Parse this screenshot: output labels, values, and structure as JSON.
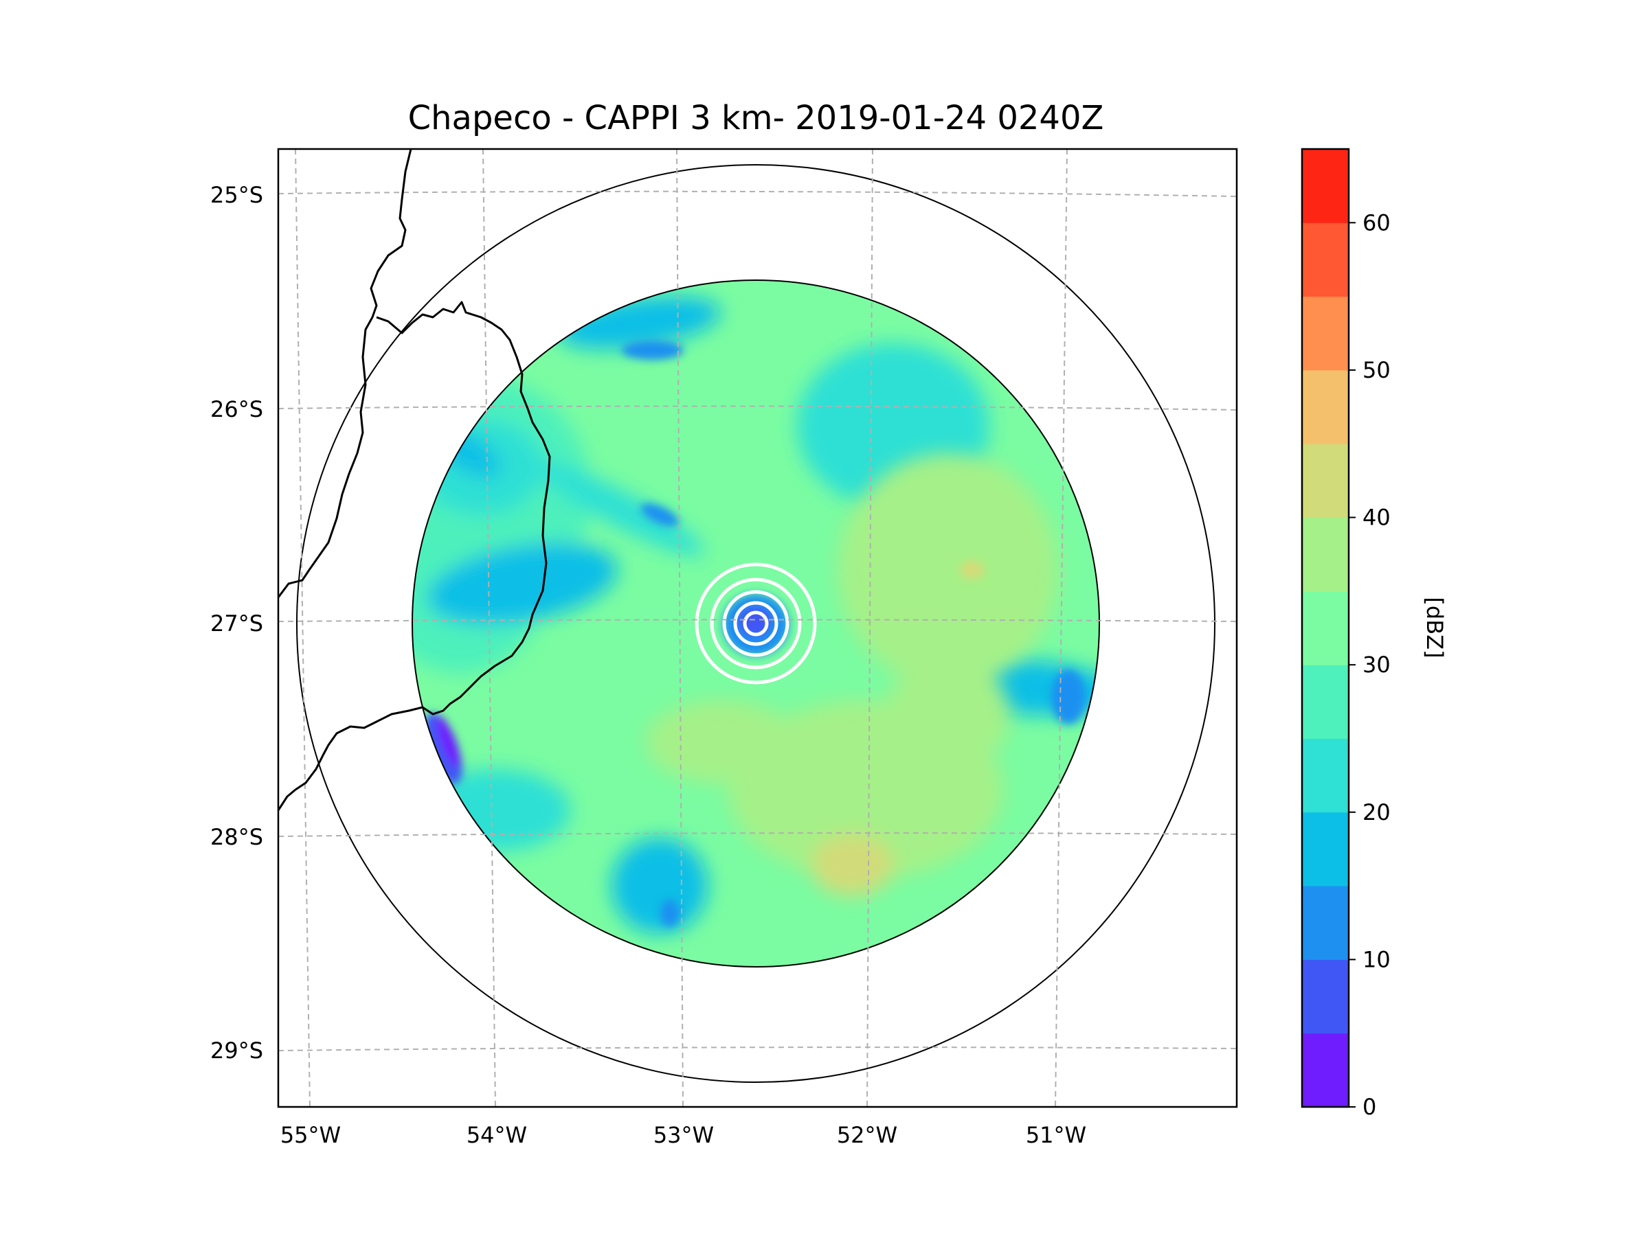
{
  "chart_data": {
    "type": "heatmap",
    "title": "Chapeco - CAPPI 3 km- 2019-01-24 0240Z",
    "radar_site": "Chapeco",
    "product": "CAPPI 3 km",
    "datetime": "2019-01-24 0240Z",
    "x_ticks": [
      "55°W",
      "54°W",
      "53°W",
      "52°W",
      "51°W"
    ],
    "x_tick_values": [
      -55,
      -54,
      -53,
      -52,
      -51
    ],
    "y_ticks": [
      "25°S",
      "26°S",
      "27°S",
      "28°S",
      "29°S"
    ],
    "y_tick_values": [
      -25,
      -26,
      -27,
      -28,
      -29
    ],
    "xlim": [
      -55.2,
      -50.1
    ],
    "ylim": [
      -29.3,
      -24.8
    ],
    "radar_center": {
      "lon": -52.6,
      "lat": -27.0
    },
    "grid": true,
    "colorbar": {
      "label": "[dBZ]",
      "ticks": [
        "0",
        "10",
        "20",
        "30",
        "40",
        "50",
        "60"
      ],
      "tick_values": [
        0,
        10,
        20,
        30,
        40,
        50,
        60
      ],
      "range": [
        0,
        65
      ],
      "levels": [
        0,
        5,
        10,
        15,
        20,
        25,
        30,
        35,
        40,
        45,
        50,
        55,
        60,
        65
      ],
      "colors": [
        "#6f1cff",
        "#4157f5",
        "#1e90f0",
        "#0cbfe6",
        "#2fe0d4",
        "#4ef0bb",
        "#7bfca2",
        "#a5f088",
        "#d2db79",
        "#f5c06c",
        "#ff8f4f",
        "#ff5833",
        "#ff2515"
      ]
    },
    "field_summary": "reflectivity mostly 25-40 dBZ, lower values (5-20 dBZ) west/northwest, local maxima 40-45 dBZ east and southeast"
  },
  "colors": {
    "grid": "#b0b0b0",
    "range_ring": "#000000",
    "coastline": "#000000",
    "clutter_rings": "#ffffff"
  }
}
